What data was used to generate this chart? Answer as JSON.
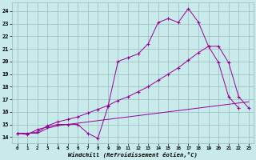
{
  "xlabel": "Windchill (Refroidissement éolien,°C)",
  "bg_color": "#c8eaea",
  "line_color": "#990099",
  "grid_color": "#99bbbb",
  "x_ticks": [
    0,
    1,
    2,
    3,
    4,
    5,
    6,
    7,
    8,
    9,
    10,
    11,
    12,
    13,
    14,
    15,
    16,
    17,
    18,
    19,
    20,
    21,
    22,
    23
  ],
  "y_ticks": [
    14,
    15,
    16,
    17,
    18,
    19,
    20,
    21,
    22,
    23,
    24
  ],
  "xlim": [
    -0.5,
    23.5
  ],
  "ylim": [
    13.5,
    24.7
  ],
  "line1_x": [
    0,
    1,
    2,
    3,
    4,
    5,
    6,
    7,
    8,
    9,
    10,
    11,
    12,
    13,
    14,
    15,
    16,
    17,
    18,
    19,
    20,
    21,
    22
  ],
  "line1_y": [
    14.3,
    14.2,
    14.6,
    14.8,
    15.0,
    15.0,
    15.0,
    14.3,
    13.9,
    16.4,
    20.0,
    20.3,
    20.6,
    21.4,
    23.1,
    23.4,
    23.1,
    24.2,
    23.1,
    21.2,
    19.9,
    17.2,
    16.3
  ],
  "line2_x": [
    0,
    1,
    2,
    3,
    4,
    5,
    6,
    7,
    8,
    9,
    10,
    11,
    12,
    13,
    14,
    15,
    16,
    17,
    18,
    19,
    20,
    21,
    22,
    23
  ],
  "line2_y": [
    14.3,
    14.3,
    14.4,
    14.9,
    15.2,
    15.4,
    15.6,
    15.9,
    16.2,
    16.5,
    16.9,
    17.2,
    17.6,
    18.0,
    18.5,
    19.0,
    19.5,
    20.1,
    20.7,
    21.2,
    21.2,
    19.9,
    17.2,
    16.3
  ],
  "line3_x": [
    0,
    1,
    2,
    3,
    4,
    5,
    6,
    7,
    8,
    9,
    10,
    11,
    12,
    13,
    14,
    15,
    16,
    17,
    18,
    19,
    20,
    21,
    22,
    23
  ],
  "line3_y": [
    14.3,
    14.3,
    14.3,
    14.7,
    14.9,
    15.0,
    15.1,
    15.2,
    15.3,
    15.4,
    15.5,
    15.6,
    15.7,
    15.8,
    15.9,
    16.0,
    16.1,
    16.2,
    16.3,
    16.4,
    16.5,
    16.6,
    16.7,
    16.8
  ]
}
